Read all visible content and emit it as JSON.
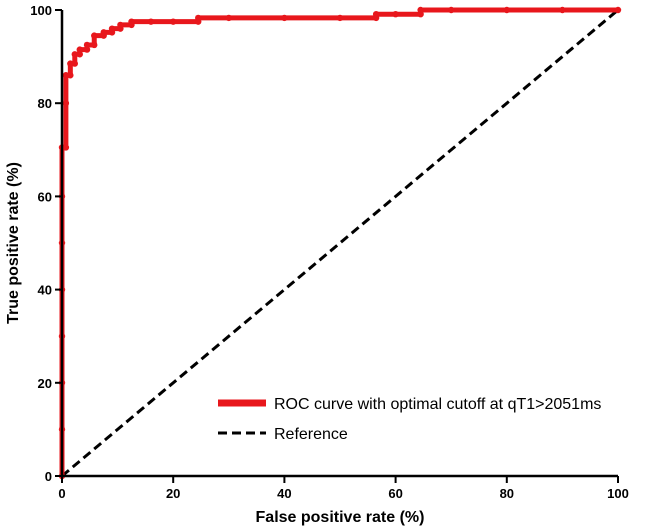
{
  "chart_data": {
    "type": "line",
    "title": "",
    "xlabel": "False positive rate (%)",
    "ylabel": "True positive rate (%)",
    "xlim": [
      0,
      100
    ],
    "ylim": [
      0,
      100
    ],
    "x_ticks": [
      0,
      20,
      40,
      60,
      80,
      100
    ],
    "y_ticks": [
      0,
      20,
      40,
      60,
      80,
      100
    ],
    "x_tick_labels": [
      "0",
      "20",
      "40",
      "60",
      "80",
      "100"
    ],
    "y_tick_labels": [
      "0",
      "20",
      "40",
      "60",
      "80",
      "100"
    ],
    "grid": false,
    "legend_position": "bottom-right",
    "series": [
      {
        "name": "ROC curve with optimal cutoff at qT1>2051ms",
        "color": "#e8171c",
        "style": "solid-with-markers",
        "points": [
          [
            0,
            0
          ],
          [
            0,
            10
          ],
          [
            0,
            20
          ],
          [
            0,
            30
          ],
          [
            0,
            40
          ],
          [
            0,
            50
          ],
          [
            0,
            60
          ],
          [
            0,
            70.5
          ],
          [
            0.7,
            70.5
          ],
          [
            0.7,
            80
          ],
          [
            0.7,
            86
          ],
          [
            1.5,
            86
          ],
          [
            1.5,
            88.5
          ],
          [
            2.3,
            88.5
          ],
          [
            2.3,
            90.5
          ],
          [
            3.2,
            90.5
          ],
          [
            3.2,
            91.5
          ],
          [
            4.5,
            91.5
          ],
          [
            4.5,
            92.5
          ],
          [
            5.8,
            92.5
          ],
          [
            5.8,
            94.5
          ],
          [
            7.5,
            94.5
          ],
          [
            7.5,
            95.2
          ],
          [
            9,
            95.2
          ],
          [
            9,
            96
          ],
          [
            10.5,
            96
          ],
          [
            10.5,
            96.8
          ],
          [
            12.5,
            96.8
          ],
          [
            12.5,
            97.5
          ],
          [
            16,
            97.5
          ],
          [
            20,
            97.5
          ],
          [
            24.5,
            97.5
          ],
          [
            24.5,
            98.3
          ],
          [
            30,
            98.3
          ],
          [
            40,
            98.3
          ],
          [
            50,
            98.3
          ],
          [
            56.5,
            98.3
          ],
          [
            56.5,
            99.1
          ],
          [
            60,
            99.1
          ],
          [
            64.5,
            99.1
          ],
          [
            64.5,
            100
          ],
          [
            70,
            100
          ],
          [
            80,
            100
          ],
          [
            90,
            100
          ],
          [
            100,
            100
          ]
        ]
      },
      {
        "name": "Reference",
        "color": "#000000",
        "style": "dashed",
        "points": [
          [
            0,
            0
          ],
          [
            100,
            100
          ]
        ]
      }
    ]
  }
}
